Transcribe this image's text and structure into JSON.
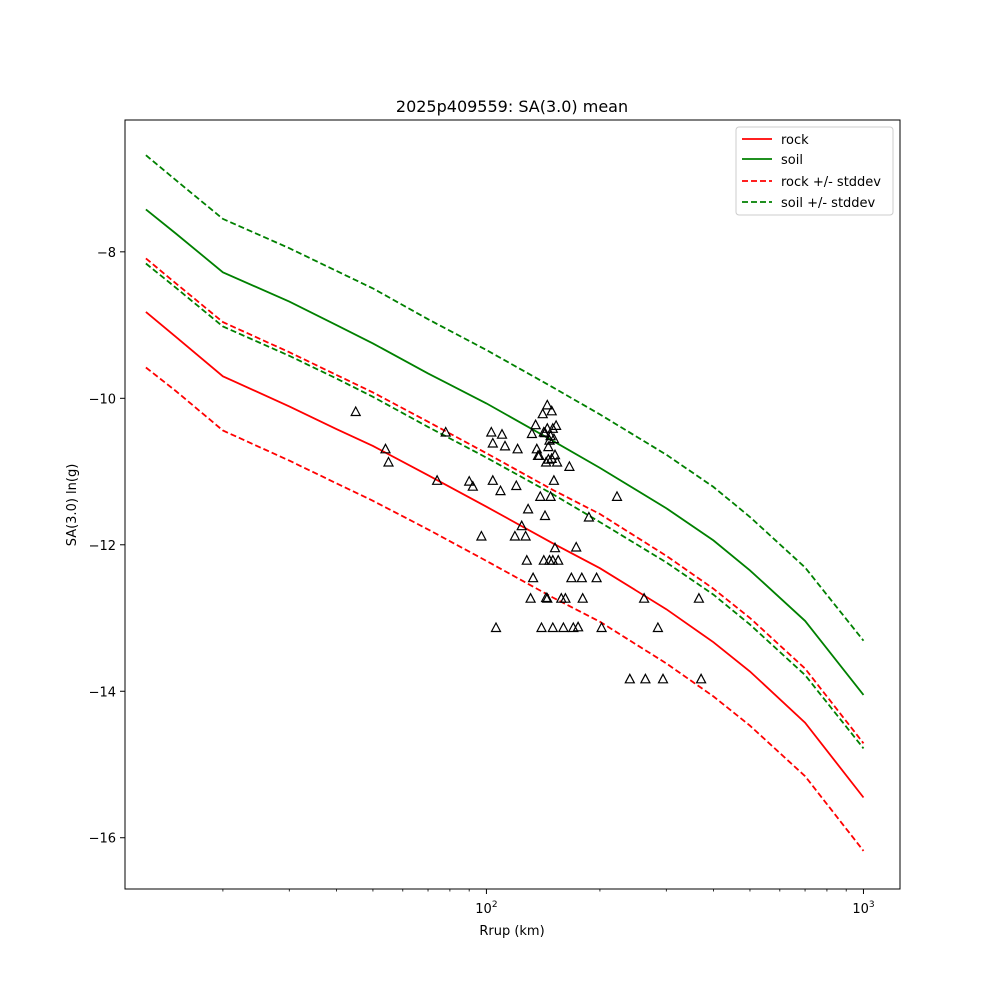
{
  "chart_data": {
    "type": "line",
    "title": "2025p409559: SA(3.0) mean",
    "xlabel": "Rrup (km)",
    "ylabel": "SA(3.0) ln(g)",
    "xscale": "log",
    "xlim": [
      11,
      1250
    ],
    "ylim": [
      -16.7,
      -6.2
    ],
    "xticks": [
      {
        "value": 100,
        "label": "10",
        "exp": "2"
      },
      {
        "value": 1000,
        "label": "10",
        "exp": "3"
      }
    ],
    "yticks": [
      -8,
      -10,
      -12,
      -14,
      -16
    ],
    "legend_position": "top-right",
    "series": [
      {
        "name": "rock",
        "color": "#ff0000",
        "style": "solid",
        "x": [
          12.5,
          15,
          20,
          30,
          40,
          50,
          70,
          100,
          150,
          200,
          300,
          400,
          500,
          700,
          1000
        ],
        "y": [
          -8.82,
          -9.16,
          -9.7,
          -10.11,
          -10.42,
          -10.65,
          -11.05,
          -11.48,
          -11.98,
          -12.32,
          -12.88,
          -13.33,
          -13.73,
          -14.43,
          -15.45
        ]
      },
      {
        "name": "soil",
        "color": "#008000",
        "style": "solid",
        "x": [
          12.5,
          15,
          20,
          30,
          40,
          50,
          70,
          100,
          150,
          200,
          300,
          400,
          500,
          700,
          1000
        ],
        "y": [
          -7.42,
          -7.75,
          -8.28,
          -8.68,
          -9.0,
          -9.25,
          -9.66,
          -10.07,
          -10.58,
          -10.95,
          -11.5,
          -11.94,
          -12.35,
          -13.04,
          -14.05
        ]
      },
      {
        "name": "rock +/- stddev",
        "color": "#ff0000",
        "style": "dashed",
        "x": [
          12.5,
          15,
          20,
          30,
          40,
          50,
          70,
          100,
          150,
          200,
          300,
          400,
          500,
          700,
          1000
        ],
        "y": [
          -8.09,
          -8.43,
          -8.96,
          -9.37,
          -9.68,
          -9.92,
          -10.32,
          -10.75,
          -11.25,
          -11.58,
          -12.15,
          -12.6,
          -13.0,
          -13.69,
          -14.71
        ]
      },
      {
        "name": "",
        "color": "#ff0000",
        "style": "dashed",
        "x": [
          12.5,
          15,
          20,
          30,
          40,
          50,
          70,
          100,
          150,
          200,
          300,
          400,
          500,
          700,
          1000
        ],
        "y": [
          -9.58,
          -9.9,
          -10.44,
          -10.85,
          -11.16,
          -11.4,
          -11.79,
          -12.22,
          -12.72,
          -13.05,
          -13.62,
          -14.07,
          -14.47,
          -15.16,
          -16.18
        ]
      },
      {
        "name": "soil +/- stddev",
        "color": "#008000",
        "style": "dashed",
        "x": [
          12.5,
          15,
          20,
          30,
          40,
          50,
          70,
          100,
          150,
          200,
          300,
          400,
          500,
          700,
          1000
        ],
        "y": [
          -6.68,
          -7.02,
          -7.55,
          -7.95,
          -8.26,
          -8.5,
          -8.92,
          -9.34,
          -9.85,
          -10.22,
          -10.77,
          -11.21,
          -11.62,
          -12.31,
          -13.31
        ]
      },
      {
        "name": "",
        "color": "#008000",
        "style": "dashed",
        "x": [
          12.5,
          15,
          20,
          30,
          40,
          50,
          70,
          100,
          150,
          200,
          300,
          400,
          500,
          700,
          1000
        ],
        "y": [
          -8.16,
          -8.49,
          -9.02,
          -9.42,
          -9.73,
          -9.98,
          -10.39,
          -10.81,
          -11.31,
          -11.69,
          -12.24,
          -12.68,
          -13.09,
          -13.78,
          -14.78
        ]
      }
    ],
    "observations": {
      "marker": "triangle",
      "color": "#000000",
      "x": [
        45,
        54,
        55,
        74,
        78,
        90,
        92,
        97,
        103,
        104,
        104,
        106,
        109,
        110,
        112,
        119,
        120,
        121,
        124,
        127,
        128,
        129,
        131,
        132,
        133,
        135,
        136,
        137,
        138,
        139,
        140,
        141,
        142,
        142,
        143,
        143,
        144,
        144,
        145,
        145,
        145,
        146,
        146,
        147,
        147,
        148,
        148,
        149,
        149,
        150,
        150,
        150,
        151,
        151,
        152,
        152,
        153,
        154,
        155,
        158,
        160,
        162,
        166,
        168,
        170,
        173,
        175,
        179,
        180,
        187,
        196,
        202,
        222,
        240,
        262,
        264,
        285,
        294,
        366,
        371
      ],
      "y": [
        -10.18,
        -10.69,
        -10.87,
        -11.12,
        -10.46,
        -11.13,
        -11.2,
        -11.88,
        -10.46,
        -10.61,
        -11.12,
        -13.13,
        -11.26,
        -10.49,
        -10.65,
        -11.88,
        -11.19,
        -10.69,
        -11.74,
        -11.88,
        -12.21,
        -11.51,
        -12.73,
        -10.48,
        -12.45,
        -10.36,
        -10.69,
        -10.78,
        -10.78,
        -11.34,
        -13.13,
        -10.21,
        -12.21,
        -10.46,
        -10.47,
        -11.6,
        -12.72,
        -10.87,
        -10.09,
        -10.41,
        -12.73,
        -10.83,
        -10.66,
        -10.57,
        -12.21,
        -10.51,
        -11.34,
        -10.17,
        -10.82,
        -12.21,
        -10.41,
        -13.13,
        -10.55,
        -11.12,
        -12.04,
        -10.77,
        -10.37,
        -10.87,
        -12.21,
        -12.73,
        -13.13,
        -12.73,
        -10.93,
        -12.45,
        -13.13,
        -12.03,
        -13.12,
        -12.45,
        -12.73,
        -11.62,
        -12.45,
        -13.13,
        -11.34,
        -13.83,
        -12.73,
        -13.83,
        -13.13,
        -13.83,
        -12.73,
        -13.83
      ]
    }
  }
}
